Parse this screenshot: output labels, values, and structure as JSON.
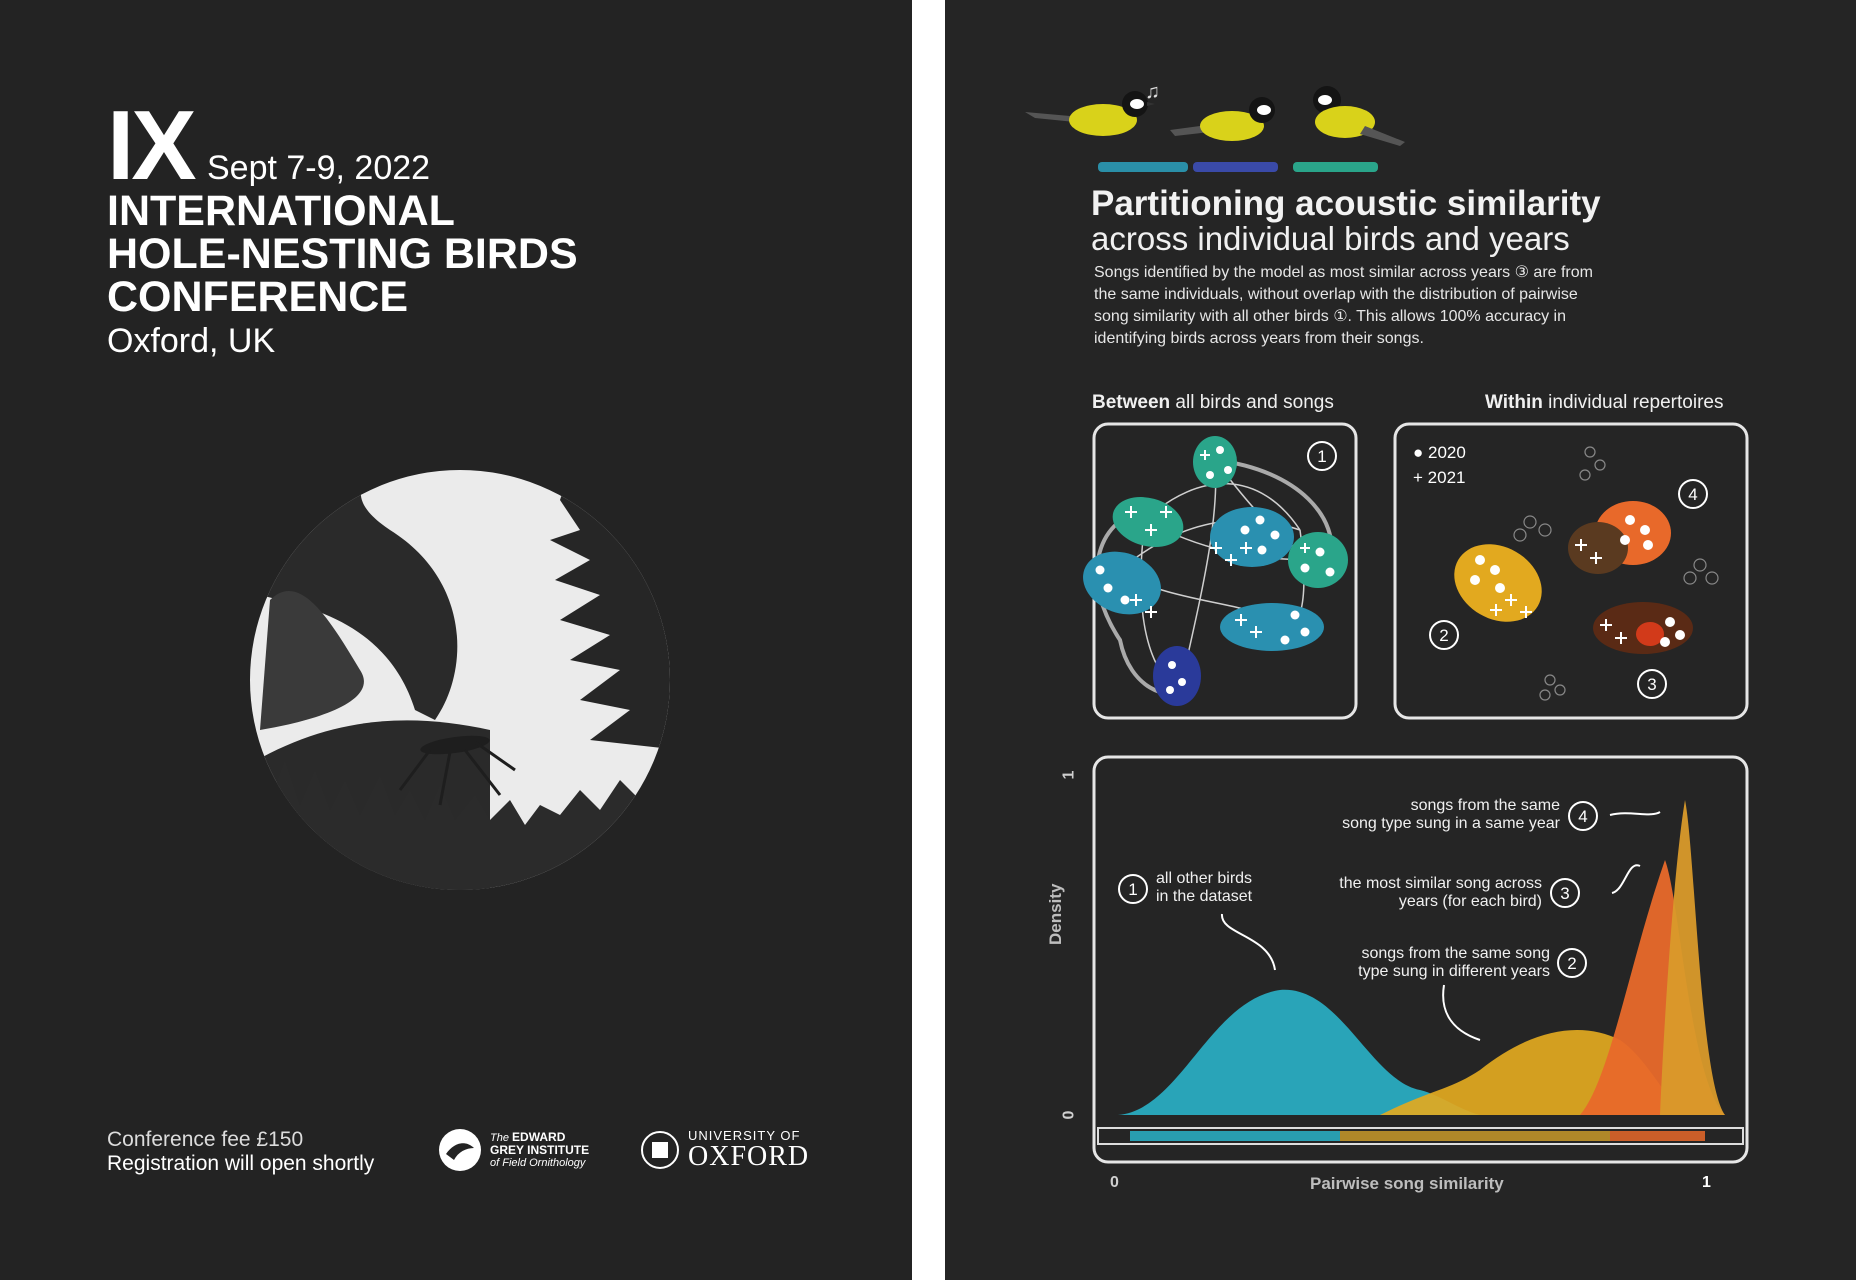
{
  "left_poster": {
    "edition": "IX",
    "dates": "Sept 7-9, 2022",
    "title_lines": [
      "INTERNATIONAL",
      "HOLE-NESTING BIRDS",
      "CONFERENCE"
    ],
    "location": "Oxford, UK",
    "fee": "Conference fee £150",
    "registration": "Registration will open shortly",
    "logo_egi": {
      "line1_prefix": "The",
      "line1": "EDWARD",
      "line2": "GREY INSTITUTE",
      "line3": "of Field Ornithology"
    },
    "logo_oxford": {
      "small": "UNIVERSITY OF",
      "big": "OXFORD"
    }
  },
  "right_poster": {
    "title_line1": "Partitioning acoustic similarity",
    "title_line2": "across individual birds and years",
    "description": "Songs identified by the model as most similar across years ③ are from the same individuals, without overlap with the distribution of pairwise song similarity with all other birds ①. This allows 100% accuracy in identifying birds across years from their songs.",
    "between_label_bold": "Between",
    "between_label_rest": " all birds and songs",
    "within_label_bold": "Within",
    "within_label_rest": " individual repertoires",
    "legend": [
      {
        "symbol": "●",
        "label": "2020"
      },
      {
        "symbol": "+",
        "label": "2021"
      }
    ],
    "circled": {
      "one": "1",
      "two": "2",
      "three": "3",
      "four": "4"
    },
    "annotations": {
      "a4_line1": "songs from the same",
      "a4_line2": "song type sung in a same year",
      "a3_line1": "the most similar song across",
      "a3_line2": "years (for each bird)",
      "a2_line1": "songs from the same song",
      "a2_line2": "type sung in different years",
      "a1_line1": "all other birds",
      "a1_line2": "in the dataset"
    },
    "axis": {
      "y_label": "Density",
      "y_top": "1",
      "y_bottom": "0",
      "x_label": "Pairwise song similarity",
      "x_left": "0",
      "x_right": "1"
    },
    "colors": {
      "teal": "#2ab3c9",
      "yellow": "#e2a91f",
      "orange": "#e8692a",
      "amber": "#d99a2a",
      "green": "#2aa58a",
      "blue": "#2a3a9a"
    }
  }
}
